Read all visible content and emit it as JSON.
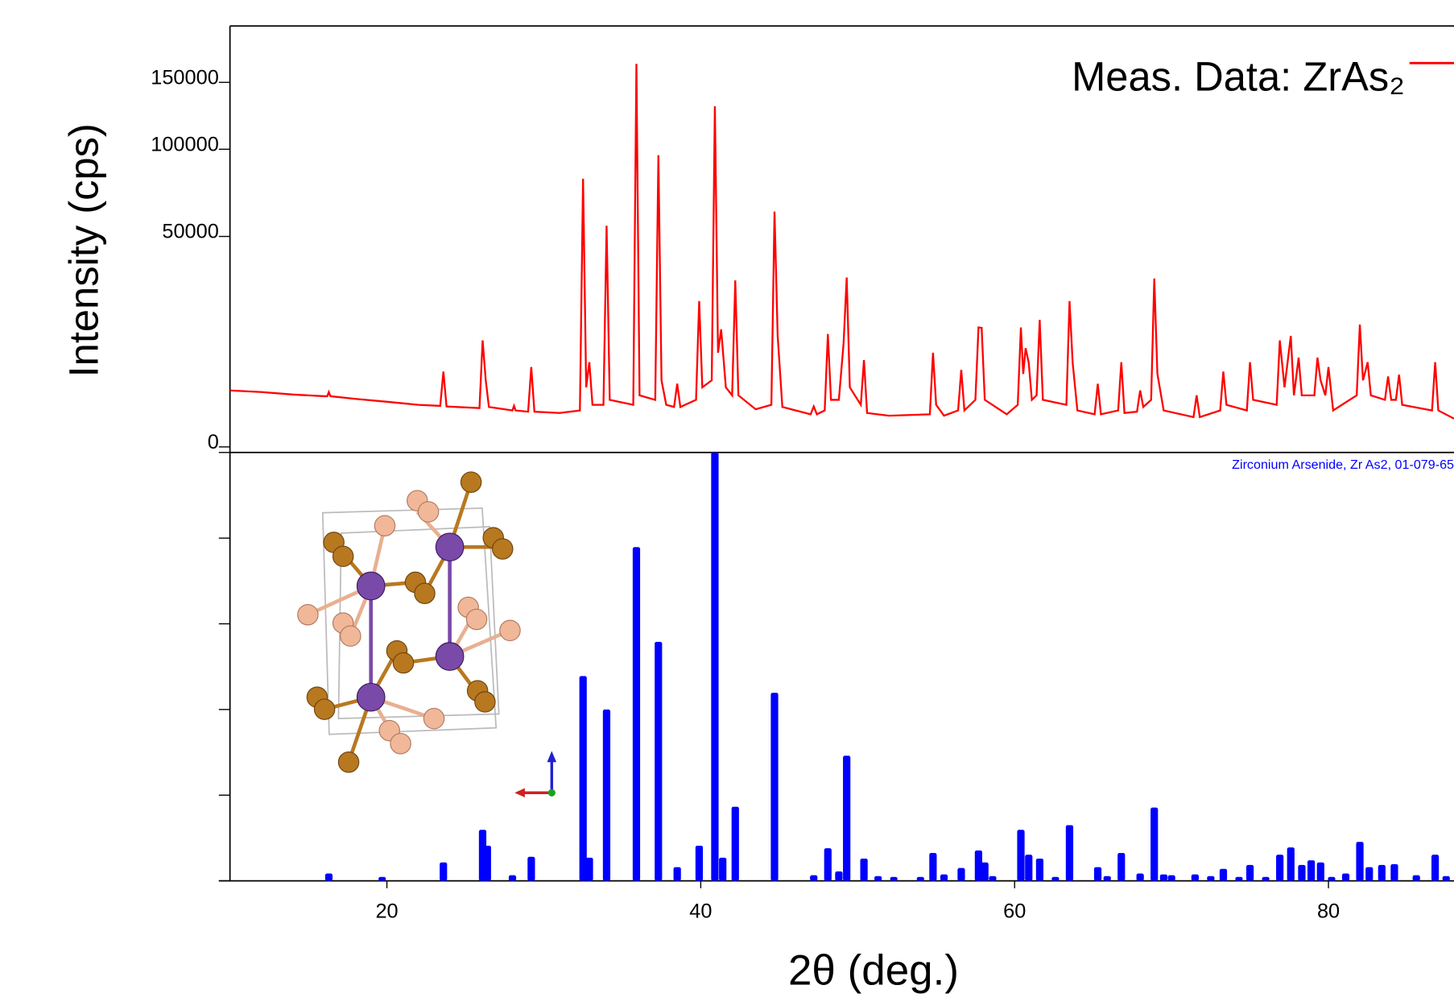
{
  "chart_data": [
    {
      "type": "line",
      "ylabel": "Intensity (cps)",
      "yscale": "sqrt",
      "ylim": [
        0,
        200000
      ],
      "yticks": [
        0,
        50000,
        100000,
        150000
      ],
      "xlim": [
        10,
        88
      ],
      "legend": "upper right",
      "series": [
        {
          "name": "Meas. Data: ZrAs₂",
          "color": "#ff0000",
          "x": [
            10,
            12,
            14,
            16,
            16.2,
            16.3,
            16.4,
            18,
            20,
            22,
            23.4,
            23.6,
            23.8,
            25.9,
            26.1,
            26.3,
            26.5,
            28,
            28.1,
            28.2,
            29,
            29.2,
            29.4,
            31,
            32.3,
            32.5,
            32.7,
            32.9,
            33.1,
            33.8,
            34.0,
            34.2,
            35.7,
            35.9,
            36.1,
            37.1,
            37.3,
            37.5,
            37.8,
            38.3,
            38.5,
            38.7,
            39.7,
            39.9,
            40.1,
            40.7,
            40.9,
            41.1,
            41.3,
            41.6,
            42.0,
            42.2,
            42.4,
            43.5,
            44.5,
            44.7,
            44.9,
            45.2,
            47,
            47.2,
            47.4,
            47.9,
            48.1,
            48.3,
            48.8,
            49.1,
            49.3,
            49.5,
            50.2,
            50.4,
            50.6,
            52,
            54.6,
            54.8,
            55,
            55.5,
            56.4,
            56.6,
            56.8,
            57.5,
            57.7,
            57.9,
            58.1,
            59.5,
            60.2,
            60.4,
            60.55,
            60.7,
            60.9,
            61.1,
            61.4,
            61.6,
            61.8,
            63.3,
            63.5,
            63.7,
            64,
            65.1,
            65.3,
            65.5,
            66.6,
            66.8,
            67,
            67.8,
            68,
            68.2,
            68.7,
            68.9,
            69.1,
            69.5,
            71.4,
            71.6,
            71.8,
            73.1,
            73.3,
            73.5,
            74.8,
            75,
            75.2,
            76.7,
            76.9,
            77.2,
            77.6,
            77.8,
            78.1,
            78.3,
            79.1,
            79.3,
            79.5,
            79.8,
            80,
            80.3,
            81.8,
            82,
            82.2,
            82.5,
            82.7,
            83.6,
            83.8,
            84,
            84.3,
            84.5,
            84.7,
            86.6,
            86.8,
            87,
            88
          ],
          "values": [
            3600,
            3400,
            3100,
            2900,
            2900,
            3400,
            2900,
            2600,
            2300,
            2000,
            1900,
            6400,
            1850,
            1700,
            12800,
            5000,
            1800,
            1500,
            1900,
            1500,
            1400,
            7200,
            1400,
            1300,
            1500,
            81200,
            4000,
            8100,
            2000,
            2000,
            55200,
            2500,
            2000,
            165600,
            3000,
            2500,
            96100,
            5000,
            2000,
            1800,
            4500,
            1800,
            2500,
            24000,
            4000,
            5000,
            131000,
            10000,
            15600,
            4000,
            3000,
            31300,
            3000,
            1600,
            2000,
            62500,
            14000,
            1800,
            1200,
            1850,
            1200,
            1500,
            14400,
            2500,
            2500,
            12000,
            32400,
            4000,
            2000,
            8500,
            1300,
            1100,
            1200,
            10000,
            2000,
            1100,
            1500,
            6700,
            1500,
            2500,
            16100,
            16000,
            2500,
            1200,
            2000,
            16100,
            6000,
            11000,
            8000,
            2500,
            3000,
            18200,
            2500,
            2000,
            24000,
            8000,
            1500,
            1200,
            4500,
            1200,
            1500,
            8100,
            1300,
            1400,
            3600,
            1800,
            2500,
            32000,
            6000,
            1500,
            1000,
            3000,
            1000,
            1500,
            6400,
            2000,
            1500,
            8100,
            2500,
            2000,
            12800,
            4000,
            13900,
            3000,
            9000,
            3000,
            3000,
            9000,
            5000,
            3000,
            7200,
            1500,
            3000,
            16900,
            5000,
            8100,
            3000,
            2500,
            5600,
            2500,
            2500,
            5900,
            2000,
            1500,
            8100,
            1500,
            900
          ]
        }
      ]
    },
    {
      "type": "bar",
      "xlabel": "2θ (deg.)",
      "annotation": "Zirconium Arsenide, Zr As2, 01-079-65",
      "color": "#0000ff",
      "xlim": [
        10,
        88
      ],
      "xticks": [
        20,
        40,
        60,
        80
      ],
      "ylim": [
        0,
        100
      ],
      "yticks": [
        0,
        20,
        40,
        60,
        80,
        100
      ],
      "ytick_labels": false,
      "x": [
        16.3,
        19.7,
        23.6,
        26.1,
        26.4,
        28.0,
        29.2,
        32.5,
        32.9,
        34.0,
        35.9,
        37.3,
        38.5,
        39.9,
        40.9,
        41.4,
        42.2,
        44.7,
        47.2,
        48.1,
        48.8,
        49.3,
        50.4,
        51.3,
        52.3,
        54.0,
        54.8,
        55.5,
        56.6,
        57.7,
        58.1,
        58.6,
        60.4,
        60.9,
        61.6,
        62.6,
        63.5,
        65.3,
        65.9,
        66.8,
        68.0,
        68.9,
        69.5,
        70.0,
        71.5,
        72.5,
        73.3,
        74.3,
        75.0,
        76.0,
        76.9,
        77.6,
        78.3,
        78.9,
        79.5,
        80.2,
        81.1,
        82.0,
        82.6,
        83.4,
        84.2,
        85.6,
        86.8,
        87.5
      ],
      "values": [
        1.7,
        0.9,
        4.3,
        11.9,
        8.2,
        1.3,
        5.6,
        47.8,
        5.4,
        40.0,
        77.9,
        55.8,
        3.2,
        8.2,
        100,
        5.4,
        17.3,
        43.9,
        1.3,
        7.6,
        2.2,
        29.2,
        5.2,
        1.1,
        0.9,
        0.9,
        6.5,
        1.5,
        3.0,
        7.1,
        4.3,
        1.1,
        11.9,
        6.1,
        5.2,
        0.9,
        13.0,
        3.2,
        1.1,
        6.5,
        1.7,
        17.1,
        1.5,
        1.3,
        1.5,
        1.1,
        2.8,
        0.9,
        3.7,
        0.9,
        6.1,
        7.8,
        3.7,
        4.8,
        4.3,
        0.9,
        1.7,
        9.1,
        3.2,
        3.7,
        3.9,
        1.3,
        6.1,
        1.1
      ]
    }
  ]
}
